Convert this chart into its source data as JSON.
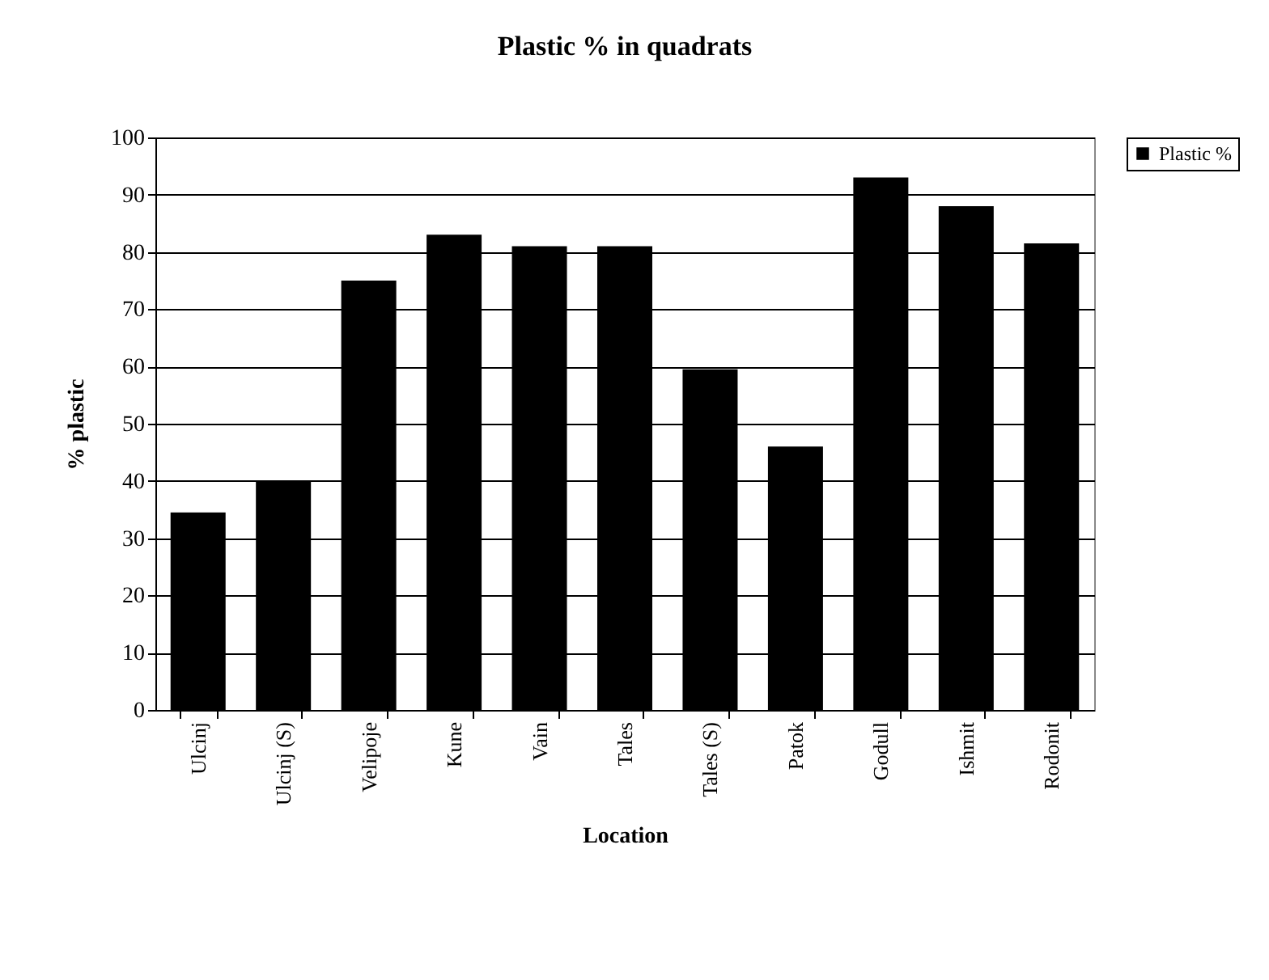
{
  "chart_data": {
    "type": "bar",
    "title": "Plastic % in quadrats",
    "xlabel": "Location",
    "ylabel": "% plastic",
    "categories": [
      "Ulcinj",
      "Ulcinj (S)",
      "Velipoje",
      "Kune",
      "Vain",
      "Tales",
      "Tales (S)",
      "Patok",
      "Godull",
      "Ishmit",
      "Rodonit"
    ],
    "series": [
      {
        "name": "Plastic %",
        "color": "#000000",
        "values": [
          34.5,
          40,
          75,
          83,
          81,
          81,
          59.5,
          46,
          93,
          88,
          81.5
        ]
      }
    ],
    "ylim": [
      0,
      100
    ],
    "yticks": [
      0,
      10,
      20,
      30,
      40,
      50,
      60,
      70,
      80,
      90,
      100
    ],
    "grid": "y",
    "legend": "right"
  }
}
